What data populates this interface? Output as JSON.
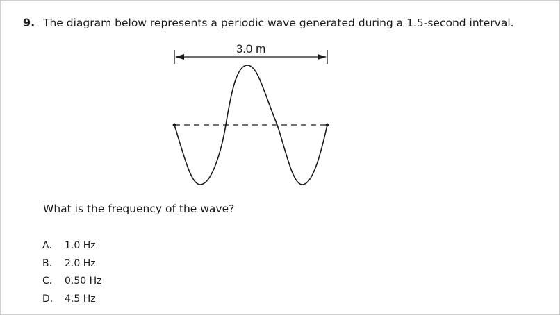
{
  "question": {
    "number": "9.",
    "text": "The diagram below represents a periodic wave generated during a 1.5-second interval.",
    "prompt": "What is the frequency of the wave?"
  },
  "diagram": {
    "dimension_label": "3.0 m"
  },
  "choices": [
    {
      "letter": "A.",
      "text": "1.0 Hz"
    },
    {
      "letter": "B.",
      "text": "2.0 Hz"
    },
    {
      "letter": "C.",
      "text": "0.50 Hz"
    },
    {
      "letter": "D.",
      "text": "4.5 Hz"
    }
  ]
}
